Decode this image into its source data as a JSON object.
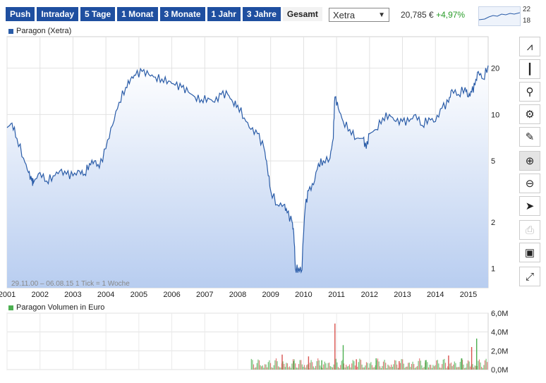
{
  "tabs": [
    "Push",
    "Intraday",
    "5 Tage",
    "1 Monat",
    "3 Monate",
    "1 Jahr",
    "3 Jahre",
    "Gesamt"
  ],
  "active_tab": "Gesamt",
  "exchange": {
    "selected": "Xetra"
  },
  "quote": {
    "price": "20,785 €",
    "change": "+4,97%"
  },
  "mini_chart": {
    "high_label": "22",
    "low_label": "18"
  },
  "legend": {
    "price": "Paragon (Xetra)",
    "volume": "Paragon Volumen in Euro"
  },
  "info_text": "29.11.00 – 06.08.15   1 Tick = 1 Woche",
  "tools": [
    "line-chart-icon",
    "candlestick-icon",
    "indicator-search-icon",
    "settings-gears-icon",
    "draw-pencil-icon",
    "zoom-in-icon",
    "zoom-out-icon",
    "pointer-icon",
    "print-icon",
    "save-icon",
    "fullscreen-icon"
  ],
  "colors": {
    "line": "#2a5ca8",
    "area_top": "#ffffff",
    "area_bottom": "#b8cdf0",
    "vol_green": "#4caf50",
    "vol_red": "#d9534f",
    "tab_bg": "#1f4fa0"
  },
  "chart_data": [
    {
      "type": "area",
      "y_scale": "log",
      "ylim": [
        0.75,
        32
      ],
      "xlim": [
        2001.0,
        2015.6
      ],
      "y_ticks": [
        1,
        2,
        5,
        10,
        20
      ],
      "y_tick_labels": [
        "1",
        "2",
        "5",
        "10",
        "20"
      ],
      "x_ticks": [
        2001,
        2002,
        2003,
        2004,
        2005,
        2006,
        2007,
        2008,
        2009,
        2010,
        2011,
        2012,
        2013,
        2014,
        2015
      ],
      "x_tick_labels": [
        "2001",
        "2002",
        "2003",
        "2004",
        "2005",
        "2006",
        "2007",
        "2008",
        "2009",
        "2010",
        "2011",
        "2012",
        "2013",
        "2014",
        "2015"
      ],
      "grid": true,
      "series": [
        {
          "x": [
            2001.0,
            2001.15,
            2001.3,
            2001.5,
            2001.65,
            2001.75,
            2001.8,
            2002.0,
            2002.2,
            2002.4,
            2002.6,
            2002.8,
            2003.0,
            2003.2,
            2003.35,
            2003.5,
            2003.65,
            2003.8,
            2004.0,
            2004.2,
            2004.4,
            2004.6,
            2004.75,
            2004.9,
            2005.1,
            2005.3,
            2005.5,
            2005.7,
            2005.9,
            2006.1,
            2006.3,
            2006.5,
            2006.7,
            2006.9,
            2007.1,
            2007.3,
            2007.5,
            2007.7,
            2007.85,
            2008.0,
            2008.2,
            2008.4,
            2008.6,
            2008.8,
            2008.9,
            2009.0,
            2009.2,
            2009.4,
            2009.5,
            2009.65,
            2009.7,
            2009.75,
            2009.85,
            2009.95,
            2010.05,
            2010.15,
            2010.3,
            2010.45,
            2010.6,
            2010.8,
            2010.9,
            2010.95,
            2011.05,
            2011.2,
            2011.4,
            2011.6,
            2011.8,
            2011.9,
            2012.0,
            2012.2,
            2012.4,
            2012.6,
            2012.8,
            2013.0,
            2013.2,
            2013.4,
            2013.6,
            2013.8,
            2014.0,
            2014.2,
            2014.4,
            2014.5,
            2014.7,
            2014.9,
            2015.0,
            2015.1,
            2015.2,
            2015.3,
            2015.45,
            2015.6
          ],
          "y": [
            8.2,
            8.8,
            7.0,
            5.2,
            4.2,
            3.7,
            3.6,
            4.2,
            3.7,
            4.0,
            4.3,
            4.1,
            4.0,
            4.3,
            4.1,
            4.8,
            5.0,
            4.5,
            6.0,
            8.5,
            12.0,
            15.0,
            17.0,
            18.0,
            19.0,
            18.2,
            17.5,
            17.0,
            16.5,
            15.5,
            15.0,
            14.0,
            13.0,
            12.5,
            12.8,
            12.0,
            13.5,
            13.5,
            12.0,
            11.5,
            9.5,
            8.0,
            7.5,
            6.0,
            4.5,
            3.2,
            2.6,
            2.6,
            2.3,
            2.0,
            1.7,
            1.0,
            1.0,
            0.98,
            2.5,
            3.2,
            3.5,
            4.8,
            5.0,
            5.2,
            7.0,
            13.0,
            11.0,
            9.0,
            8.0,
            7.0,
            7.0,
            6.0,
            7.5,
            8.0,
            9.5,
            10.0,
            9.0,
            9.0,
            9.0,
            10.0,
            8.5,
            9.5,
            9.0,
            11.0,
            12.0,
            14.5,
            13.5,
            15.0,
            13.0,
            14.0,
            15.5,
            19.0,
            17.0,
            20.8
          ]
        }
      ]
    },
    {
      "type": "bar",
      "title": "",
      "ylim": [
        0,
        6
      ],
      "y_ticks": [
        0,
        2,
        4,
        6
      ],
      "y_tick_labels": [
        "0,0M",
        "2,0M",
        "4,0M",
        "6,0M"
      ],
      "series": [
        {
          "x": [
            2009.35,
            2009.7,
            2010.15,
            2010.55,
            2010.95,
            2011.2,
            2011.6,
            2012.2,
            2012.9,
            2013.7,
            2014.4,
            2014.8,
            2015.1,
            2015.25
          ],
          "values": [
            1.6,
            0.9,
            1.4,
            1.0,
            4.9,
            2.6,
            1.1,
            1.2,
            0.9,
            1.0,
            1.5,
            1.2,
            2.4,
            3.3
          ]
        }
      ]
    }
  ]
}
